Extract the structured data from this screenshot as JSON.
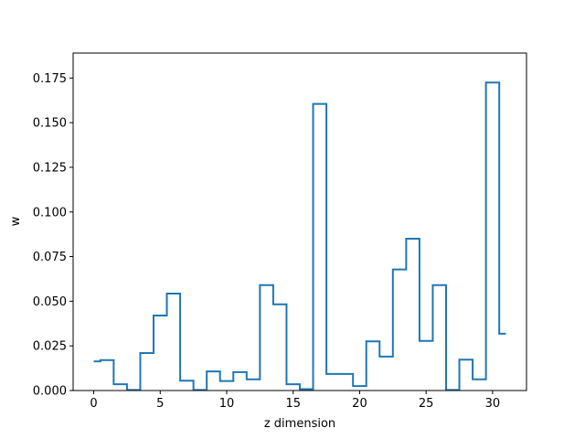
{
  "chart_data": {
    "type": "line",
    "drawstyle": "steps-mid",
    "title": "",
    "xlabel": "z dimension",
    "ylabel": "w",
    "xlim": [
      -1.55,
      32.55
    ],
    "ylim": [
      0,
      0.189
    ],
    "xticks": [
      0,
      5,
      10,
      15,
      20,
      25,
      30
    ],
    "yticks": [
      "0.000",
      "0.025",
      "0.050",
      "0.075",
      "0.100",
      "0.125",
      "0.150",
      "0.175"
    ],
    "grid": false,
    "legend": "none",
    "series": [
      {
        "color": "#1f77b4",
        "x": [
          0,
          1,
          2,
          3,
          4,
          5,
          6,
          7,
          8,
          9,
          10,
          11,
          12,
          13,
          14,
          15,
          16,
          17,
          18,
          19,
          20,
          21,
          22,
          23,
          24,
          25,
          26,
          27,
          28,
          29,
          30,
          31
        ],
        "y": [
          0.0163,
          0.017,
          0.0035,
          0.0003,
          0.021,
          0.042,
          0.0543,
          0.0055,
          0.0003,
          0.0107,
          0.0053,
          0.0103,
          0.0063,
          0.059,
          0.0483,
          0.0035,
          0.0008,
          0.1605,
          0.0093,
          0.0093,
          0.0025,
          0.0275,
          0.019,
          0.0678,
          0.085,
          0.0278,
          0.059,
          0.0003,
          0.0173,
          0.0063,
          0.1725,
          0.0318
        ]
      }
    ]
  }
}
